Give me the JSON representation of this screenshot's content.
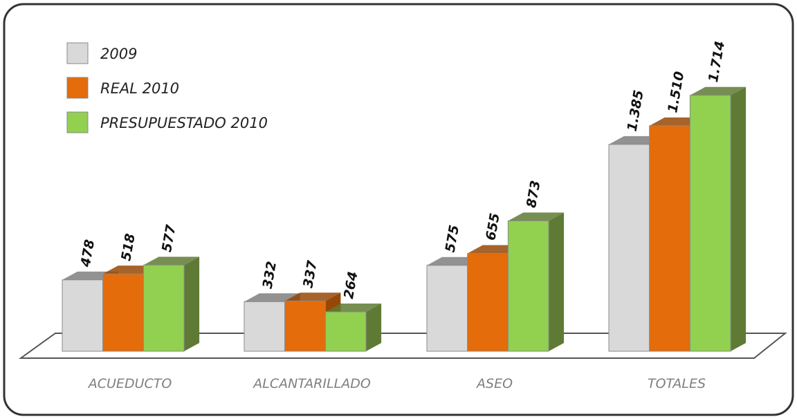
{
  "chart_data": {
    "type": "bar3d",
    "categories": [
      "ACUEDUCTO",
      "ALCANTARILLADO",
      "ASEO",
      "TOTALES"
    ],
    "series": [
      {
        "name": "2009",
        "color": "#d9d9d9",
        "side_color": "#7f7f7f",
        "values": [
          478,
          332,
          575,
          1385
        ],
        "value_labels": [
          "478",
          "332",
          "575",
          "1.385"
        ]
      },
      {
        "name": "REAL 2010",
        "color": "#e46c0a",
        "side_color": "#974806",
        "values": [
          518,
          337,
          655,
          1510
        ],
        "value_labels": [
          "518",
          "337",
          "655",
          "1.510"
        ]
      },
      {
        "name": "PRESUPUESTADO 2010",
        "color": "#92d050",
        "side_color": "#5f7a34",
        "values": [
          577,
          264,
          873,
          1714
        ],
        "value_labels": [
          "577",
          "264",
          "873",
          "1.714"
        ]
      }
    ],
    "legend": "top-left"
  }
}
